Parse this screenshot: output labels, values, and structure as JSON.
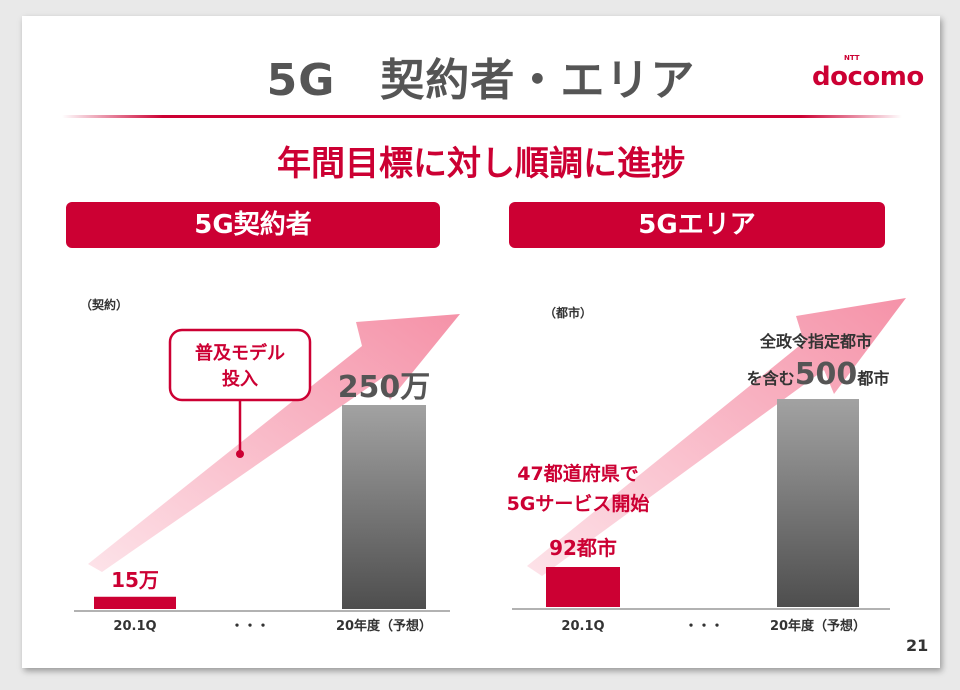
{
  "slide": {
    "title": "5G　契約者・エリア",
    "logo_ntt": "NTT",
    "logo": "docomo",
    "subtitle": "年間目標に対し順調に進捗",
    "page_number": "21"
  },
  "colors": {
    "accent": "#cc0033",
    "bar_gray_top": "#a0a0a0",
    "bar_gray_bottom": "#505050",
    "arrow_pink": "#f7a8b8"
  },
  "chart_data": [
    {
      "type": "bar",
      "banner": "5G契約者",
      "unit_label": "（契約）",
      "categories": [
        "20.1Q",
        "・・・",
        "20年度（予想）"
      ],
      "values": [
        15,
        null,
        250
      ],
      "value_unit": "万",
      "data_labels": [
        "15万",
        "",
        "250万"
      ],
      "callout_lines": [
        "普及モデル",
        "投入"
      ],
      "bar_colors": [
        "#cc0033",
        null,
        "gray-gradient"
      ]
    },
    {
      "type": "bar",
      "banner": "5Gエリア",
      "unit_label": "（都市）",
      "categories": [
        "20.1Q",
        "・・・",
        "20年度（予想）"
      ],
      "values": [
        92,
        null,
        500
      ],
      "value_unit": "都市",
      "data_labels": [
        "92都市",
        "",
        "500都市"
      ],
      "annotation_left_lines": [
        "47都道府県で",
        "5Gサービス開始"
      ],
      "annotation_right_line1": "全政令指定都市",
      "annotation_right_prefix": "を含む",
      "annotation_right_value": "500",
      "annotation_right_suffix": "都市",
      "bar_colors": [
        "#cc0033",
        null,
        "gray-gradient"
      ]
    }
  ]
}
